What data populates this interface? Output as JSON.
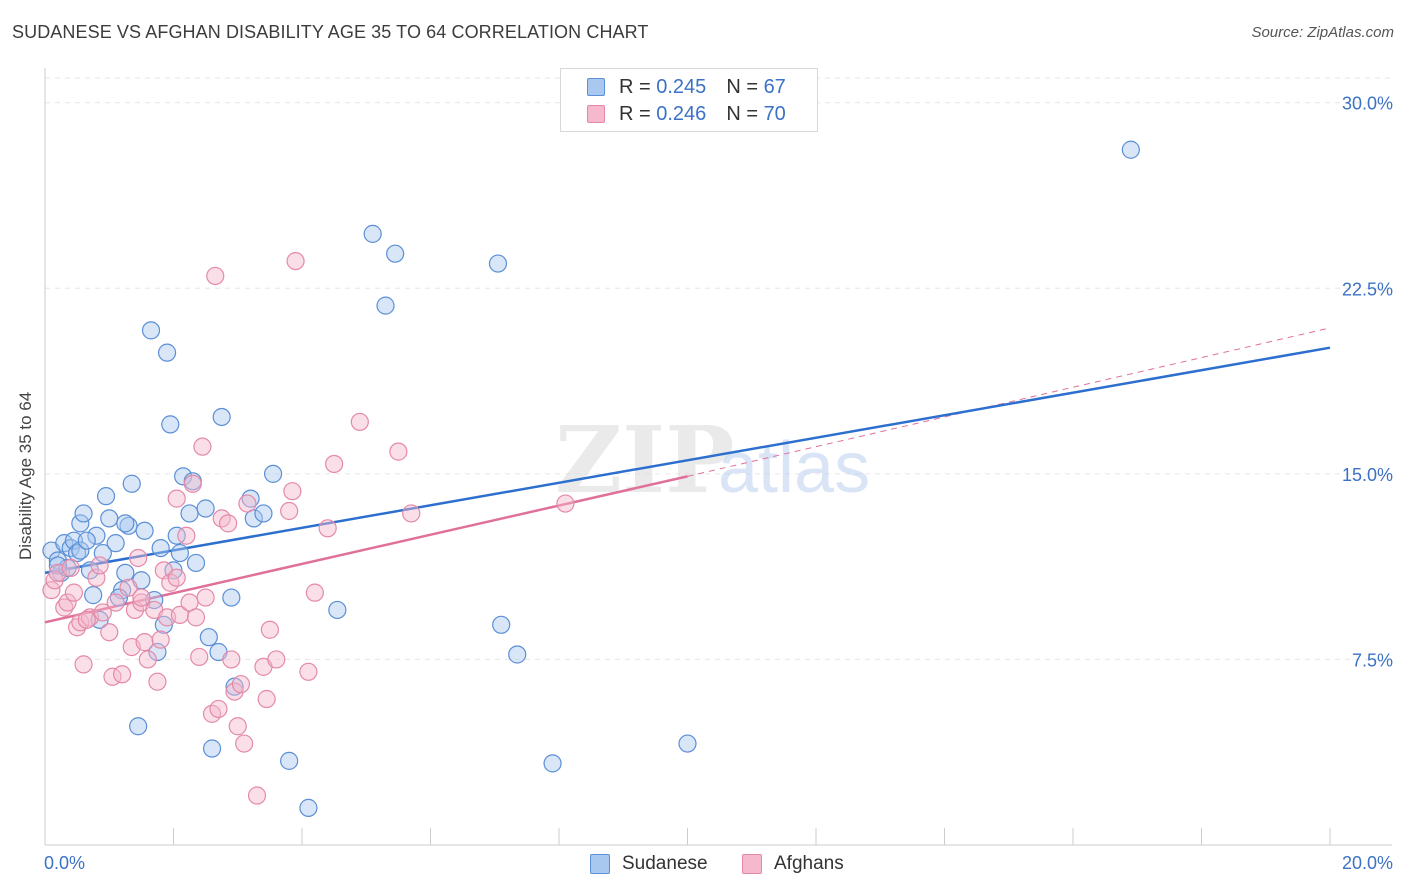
{
  "title": "SUDANESE VS AFGHAN DISABILITY AGE 35 TO 64 CORRELATION CHART",
  "source": "Source: ZipAtlas.com",
  "watermark": {
    "zip": "ZIP",
    "atlas": "atlas"
  },
  "legend": {
    "r_label": "R =",
    "n_label": "N =",
    "rows": [
      {
        "name": "Sudanese",
        "r": "0.245",
        "n": "67"
      },
      {
        "name": "Afghans",
        "r": "0.246",
        "n": "70"
      }
    ]
  },
  "colors": {
    "sudanese_fill": "#a8c8f0",
    "sudanese_stroke": "#5b8fd6",
    "sudanese_line": "#2c6fcf",
    "afghans_fill": "#f5b8cc",
    "afghans_stroke": "#e48aa8",
    "afghans_line": "#e0709a",
    "axis_text": "#3b72c5",
    "grid": "#e6e6e6"
  },
  "chart_data": {
    "type": "scatter",
    "title": "SUDANESE VS AFGHAN DISABILITY AGE 35 TO 64 CORRELATION CHART",
    "xlabel": "",
    "ylabel": "Disability Age 35 to 64",
    "xlim": [
      0,
      20
    ],
    "ylim": [
      0,
      31
    ],
    "x_tick_labels": [
      {
        "value": 0,
        "label": "0.0%"
      },
      {
        "value": 20,
        "label": "20.0%"
      }
    ],
    "y_ticks": [
      {
        "value": 7.5,
        "label": "7.5%"
      },
      {
        "value": 15,
        "label": "15.0%"
      },
      {
        "value": 22.5,
        "label": "22.5%"
      },
      {
        "value": 30,
        "label": "30.0%"
      }
    ],
    "x_minor_ticks": [
      0,
      2,
      4,
      6,
      8,
      10,
      12,
      14,
      16,
      18,
      20
    ],
    "series": [
      {
        "name": "Sudanese",
        "trend": {
          "x": [
            0,
            20
          ],
          "y": [
            11.0,
            20.1
          ]
        },
        "points": [
          [
            0.1,
            11.9
          ],
          [
            0.2,
            11.5
          ],
          [
            0.25,
            11.0
          ],
          [
            0.3,
            12.2
          ],
          [
            0.35,
            11.2
          ],
          [
            0.4,
            12.0
          ],
          [
            0.45,
            12.3
          ],
          [
            0.5,
            11.8
          ],
          [
            0.55,
            13.0
          ],
          [
            0.6,
            13.4
          ],
          [
            0.7,
            11.1
          ],
          [
            0.75,
            10.1
          ],
          [
            0.8,
            12.5
          ],
          [
            0.85,
            9.1
          ],
          [
            0.9,
            11.8
          ],
          [
            0.95,
            14.1
          ],
          [
            1.0,
            13.2
          ],
          [
            1.1,
            12.2
          ],
          [
            1.2,
            10.3
          ],
          [
            1.25,
            11.0
          ],
          [
            1.3,
            12.9
          ],
          [
            1.35,
            14.6
          ],
          [
            1.5,
            10.7
          ],
          [
            1.55,
            12.7
          ],
          [
            1.65,
            20.8
          ],
          [
            1.7,
            9.9
          ],
          [
            1.75,
            7.8
          ],
          [
            1.8,
            12.0
          ],
          [
            1.85,
            8.9
          ],
          [
            1.9,
            19.9
          ],
          [
            1.95,
            17.0
          ],
          [
            2.0,
            11.1
          ],
          [
            2.05,
            12.5
          ],
          [
            2.1,
            11.8
          ],
          [
            2.15,
            14.9
          ],
          [
            2.25,
            13.4
          ],
          [
            2.35,
            11.4
          ],
          [
            2.5,
            13.6
          ],
          [
            2.55,
            8.4
          ],
          [
            2.6,
            3.9
          ],
          [
            2.7,
            7.8
          ],
          [
            2.75,
            17.3
          ],
          [
            2.9,
            10.0
          ],
          [
            2.95,
            6.4
          ],
          [
            3.2,
            14.0
          ],
          [
            3.25,
            13.2
          ],
          [
            3.4,
            13.4
          ],
          [
            3.55,
            15.0
          ],
          [
            3.8,
            3.4
          ],
          [
            4.1,
            1.5
          ],
          [
            4.55,
            9.5
          ],
          [
            5.1,
            24.7
          ],
          [
            5.3,
            21.8
          ],
          [
            5.45,
            23.9
          ],
          [
            7.1,
            8.9
          ],
          [
            7.35,
            7.7
          ],
          [
            7.05,
            23.5
          ],
          [
            7.9,
            3.3
          ],
          [
            10.0,
            4.1
          ],
          [
            16.9,
            28.1
          ],
          [
            1.45,
            4.8
          ],
          [
            0.2,
            11.3
          ],
          [
            1.25,
            13.0
          ],
          [
            0.55,
            11.9
          ],
          [
            2.3,
            14.7
          ],
          [
            1.15,
            10.0
          ],
          [
            0.65,
            12.3
          ]
        ]
      },
      {
        "name": "Afghans",
        "trend": {
          "x": [
            0,
            10
          ],
          "y": [
            9.0,
            14.9
          ]
        },
        "trend_dashed": {
          "x": [
            10,
            20
          ],
          "y": [
            14.9,
            20.9
          ]
        },
        "points": [
          [
            0.1,
            10.3
          ],
          [
            0.15,
            10.7
          ],
          [
            0.2,
            11.0
          ],
          [
            0.3,
            9.6
          ],
          [
            0.35,
            9.8
          ],
          [
            0.4,
            11.2
          ],
          [
            0.45,
            10.2
          ],
          [
            0.5,
            8.8
          ],
          [
            0.55,
            9.0
          ],
          [
            0.6,
            7.3
          ],
          [
            0.7,
            9.2
          ],
          [
            0.8,
            10.8
          ],
          [
            0.85,
            11.3
          ],
          [
            0.9,
            9.4
          ],
          [
            1.0,
            8.6
          ],
          [
            1.05,
            6.8
          ],
          [
            1.1,
            9.8
          ],
          [
            1.2,
            6.9
          ],
          [
            1.3,
            10.4
          ],
          [
            1.35,
            8.0
          ],
          [
            1.4,
            9.5
          ],
          [
            1.45,
            11.6
          ],
          [
            1.5,
            9.8
          ],
          [
            1.55,
            8.2
          ],
          [
            1.6,
            7.5
          ],
          [
            1.7,
            9.5
          ],
          [
            1.75,
            6.6
          ],
          [
            1.8,
            8.3
          ],
          [
            1.85,
            11.1
          ],
          [
            1.9,
            9.2
          ],
          [
            1.95,
            10.6
          ],
          [
            2.05,
            14.0
          ],
          [
            2.1,
            9.3
          ],
          [
            2.2,
            12.5
          ],
          [
            2.25,
            9.8
          ],
          [
            2.3,
            14.6
          ],
          [
            2.35,
            9.2
          ],
          [
            2.4,
            7.6
          ],
          [
            2.45,
            16.1
          ],
          [
            2.5,
            10.0
          ],
          [
            2.6,
            5.3
          ],
          [
            2.65,
            23.0
          ],
          [
            2.7,
            5.5
          ],
          [
            2.75,
            13.2
          ],
          [
            2.85,
            13.0
          ],
          [
            2.9,
            7.5
          ],
          [
            2.95,
            6.2
          ],
          [
            3.0,
            4.8
          ],
          [
            3.05,
            6.5
          ],
          [
            3.1,
            4.1
          ],
          [
            3.15,
            13.8
          ],
          [
            3.3,
            2.0
          ],
          [
            3.4,
            7.2
          ],
          [
            3.45,
            5.9
          ],
          [
            3.5,
            8.7
          ],
          [
            3.6,
            7.5
          ],
          [
            3.8,
            13.5
          ],
          [
            3.85,
            14.3
          ],
          [
            3.9,
            23.6
          ],
          [
            4.1,
            7.0
          ],
          [
            4.2,
            10.2
          ],
          [
            4.4,
            12.8
          ],
          [
            4.5,
            15.4
          ],
          [
            4.9,
            17.1
          ],
          [
            5.5,
            15.9
          ],
          [
            5.7,
            13.4
          ],
          [
            1.5,
            10.0
          ],
          [
            2.05,
            10.8
          ],
          [
            0.65,
            9.1
          ],
          [
            8.1,
            13.8
          ]
        ]
      }
    ]
  }
}
